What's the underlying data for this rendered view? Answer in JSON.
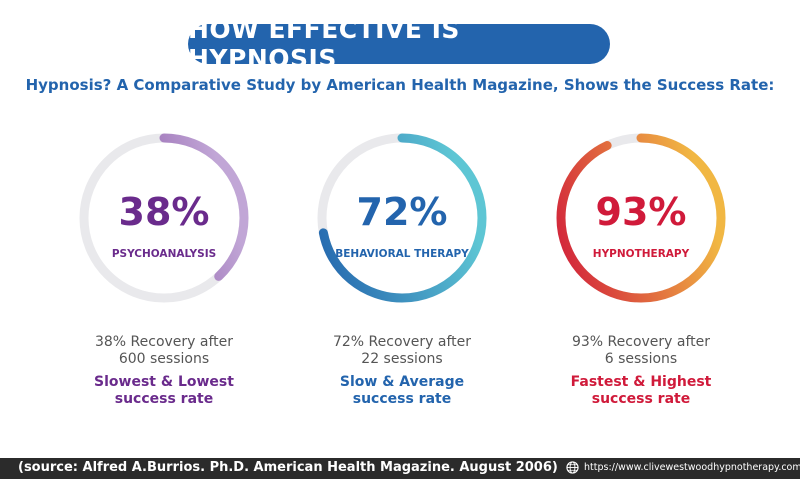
{
  "header": {
    "title": "HOW EFFECTIVE IS HYPNOSIS",
    "subtitle": "Hypnosis? A Comparative Study by American Health Magazine, Shows the Success Rate:"
  },
  "chart_data": {
    "type": "pie",
    "series": [
      {
        "name": "PSYCHOANALYSIS",
        "value": 38,
        "value_label": "38%",
        "description_line1": "38% Recovery after",
        "description_line2": "600 sessions",
        "rate_line1": "Slowest & Lowest",
        "rate_line2": "success rate",
        "color_start": "#6a2b8c",
        "color_end": "#c1a6d6",
        "text_color": "#6a2b8c"
      },
      {
        "name": "BEHAVIORAL THERAPY",
        "value": 72,
        "value_label": "72%",
        "description_line1": "72% Recovery after",
        "description_line2": "22 sessions",
        "rate_line1": "Slow & Average",
        "rate_line2": "success rate",
        "color_start": "#2364ad",
        "color_end": "#5ec6d4",
        "text_color": "#2364ad"
      },
      {
        "name": "HYPNOTHERAPY",
        "value": 93,
        "value_label": "93%",
        "description_line1": "93% Recovery after",
        "description_line2": "6 sessions",
        "rate_line1": "Fastest & Highest",
        "rate_line2": "success rate",
        "color_start": "#d01a3a",
        "color_end": "#f1b743",
        "text_color": "#d01a3a"
      }
    ],
    "track_color": "#e9e9ec"
  },
  "footer": {
    "source": "(source: Alfred A.Burrios. Ph.D. American Health Magazine. August 2006)",
    "url": "https://www.clivewestwoodhypnotherapy.com.au/",
    "icon": "globe-icon"
  }
}
